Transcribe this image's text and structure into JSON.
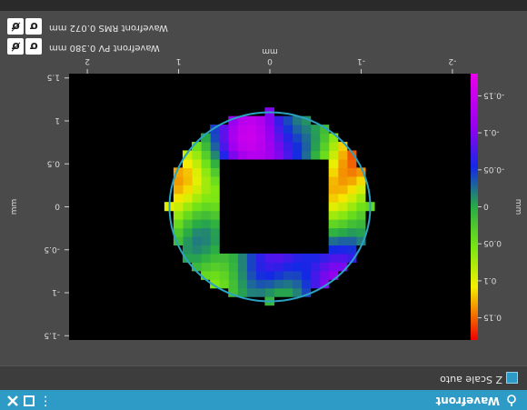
{
  "window": {
    "title": "Wavefront",
    "menu_icon": "kebab-menu-icon",
    "maximize_icon": "maximize-icon",
    "close_icon": "close-icon"
  },
  "toolbar": {
    "zscale_checked": true,
    "zscale_label": "Z Scale auto"
  },
  "readouts": {
    "pv_label": "Wavefront PV",
    "pv_value": "0.380",
    "pv_unit": "mm",
    "rms_label": "Wavefront RMS",
    "rms_value": "0.072",
    "rms_unit": "mm",
    "buttons": [
      "sigma-icon",
      "sigma-settings-icon"
    ]
  },
  "colors": {
    "accent": "#2e9bc6",
    "pupil_outline": "#2aa3c4",
    "plot_bg": "#000000"
  },
  "chart_data": {
    "type": "heatmap",
    "xlabel": "mm",
    "ylabel": "mm",
    "colorbar_label": "mm",
    "xticks": [
      "-2",
      "-1",
      "0",
      "1",
      "2"
    ],
    "yticks": [
      "-1.5",
      "-1",
      "-0.5",
      "0",
      "0.5",
      "1",
      "1.5"
    ],
    "colorbar_ticks": [
      "-0.15",
      "-0.1",
      "-0.05",
      "0",
      "0.05",
      "0.1",
      "0.15"
    ],
    "xlim": [
      -2.2,
      2.2
    ],
    "ylim": [
      -1.55,
      1.55
    ],
    "zlim": [
      -0.18,
      0.18
    ],
    "pupil": {
      "center_x": 0,
      "center_y": 0,
      "radius": 1.1
    },
    "obscuration": {
      "x_min": -0.6,
      "x_max": 0.6,
      "y_min": -0.55,
      "y_max": 0.55
    }
  }
}
